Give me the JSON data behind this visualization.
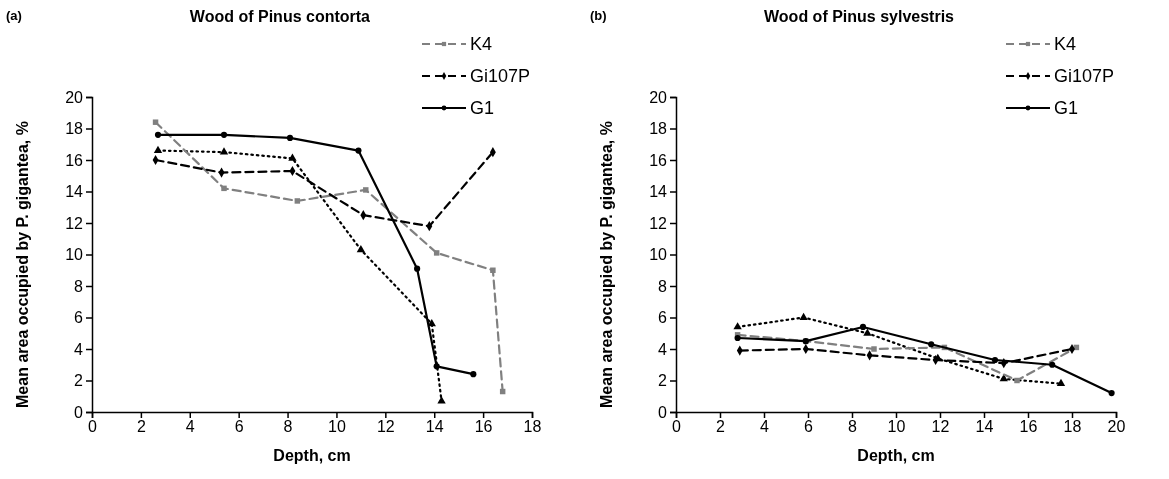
{
  "chart_data": [
    {
      "type": "line",
      "title": "Wood of Pinus contorta",
      "xlabel": "Depth, cm",
      "ylabel": "Mean area occupied by P. gigantea, %",
      "annotations": [
        "(a)"
      ],
      "xlim": [
        0,
        18
      ],
      "xticks": [
        0,
        2,
        4,
        6,
        8,
        10,
        12,
        14,
        16,
        18
      ],
      "ylim": [
        0,
        20
      ],
      "yticks": [
        0,
        2,
        4,
        6,
        8,
        10,
        12,
        14,
        16,
        18,
        20
      ],
      "grid": false,
      "legend": "top right",
      "series": [
        {
          "color": "#000000",
          "line_style": "dotted",
          "marker": "triangle",
          "x": [
            2.7,
            5.4,
            8.2,
            11.0,
            13.9,
            14.3
          ],
          "values": [
            16.6,
            16.5,
            16.1,
            10.3,
            5.6,
            0.7
          ]
        },
        {
          "name": "K4",
          "color": "#808080",
          "line_style": "dashed",
          "marker": "square",
          "x": [
            2.6,
            5.4,
            8.4,
            11.2,
            14.1,
            16.4,
            16.8
          ],
          "values": [
            18.4,
            14.2,
            13.4,
            14.1,
            10.1,
            9.0,
            1.3
          ]
        },
        {
          "name": "Gi107P",
          "color": "#000000",
          "line_style": "dashed",
          "marker": "diamond",
          "x": [
            2.6,
            5.3,
            8.2,
            11.1,
            13.8,
            16.4
          ],
          "values": [
            16.0,
            15.2,
            15.3,
            12.5,
            11.8,
            16.5
          ]
        },
        {
          "name": "G1",
          "color": "#000000",
          "line_style": "solid",
          "marker": "circle",
          "x": [
            2.7,
            5.4,
            8.1,
            10.9,
            13.3,
            14.1,
            15.6
          ],
          "values": [
            17.6,
            17.6,
            17.4,
            16.6,
            9.1,
            2.9,
            2.4
          ]
        }
      ]
    },
    {
      "type": "line",
      "title": "Wood of Pinus sylvestris",
      "xlabel": "Depth, cm",
      "ylabel": "Mean area occupied by P. gigantea, %",
      "annotations": [
        "(b)"
      ],
      "xlim": [
        0,
        20
      ],
      "xticks": [
        0,
        2,
        4,
        6,
        8,
        10,
        12,
        14,
        16,
        18,
        20
      ],
      "ylim": [
        0,
        20
      ],
      "yticks": [
        0,
        2,
        4,
        6,
        8,
        10,
        12,
        14,
        16,
        18,
        20
      ],
      "grid": false,
      "legend": "top right",
      "series": [
        {
          "color": "#000000",
          "line_style": "dotted",
          "marker": "triangle",
          "x": [
            2.8,
            5.8,
            8.7,
            11.9,
            14.9,
            17.5
          ],
          "values": [
            5.4,
            6.0,
            5.0,
            3.4,
            2.1,
            1.8
          ]
        },
        {
          "name": "K4",
          "color": "#808080",
          "line_style": "dashed",
          "marker": "square",
          "x": [
            2.8,
            5.9,
            9.0,
            12.2,
            15.5,
            18.2
          ],
          "values": [
            4.9,
            4.5,
            4.0,
            4.1,
            2.0,
            4.1
          ]
        },
        {
          "name": "Gi107P",
          "color": "#000000",
          "line_style": "dashed",
          "marker": "diamond",
          "x": [
            2.9,
            5.9,
            8.8,
            11.8,
            14.9,
            18.0
          ],
          "values": [
            3.9,
            4.0,
            3.6,
            3.3,
            3.1,
            4.0
          ]
        },
        {
          "name": "G1",
          "color": "#000000",
          "line_style": "solid",
          "marker": "circle",
          "x": [
            2.8,
            5.9,
            8.5,
            11.6,
            14.5,
            17.1,
            19.8
          ],
          "values": [
            4.7,
            4.5,
            5.4,
            4.3,
            3.3,
            3.0,
            1.2
          ]
        }
      ]
    }
  ]
}
